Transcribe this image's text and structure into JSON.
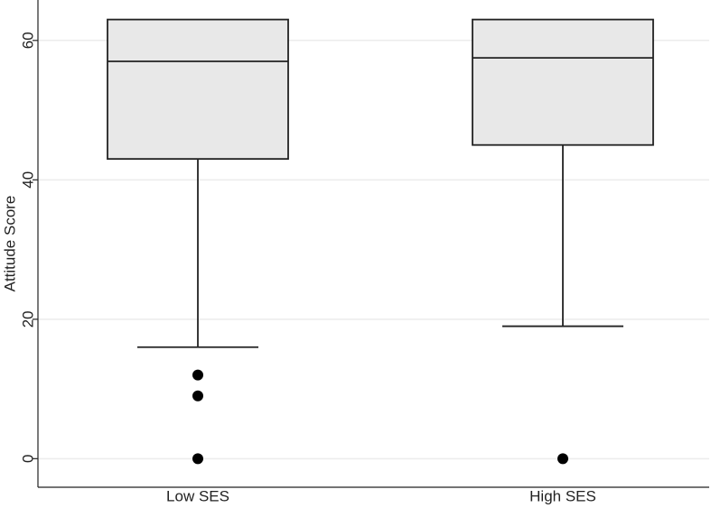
{
  "chart_data": {
    "type": "box",
    "ylabel": "Attitude Score",
    "categories": [
      "Low SES",
      "High SES"
    ],
    "q1": [
      43,
      45
    ],
    "median": [
      57,
      57.5
    ],
    "q3": [
      63,
      63
    ],
    "whislo": [
      16,
      19
    ],
    "whishi": [
      63,
      63
    ],
    "fliers": [
      [
        12,
        9,
        0
      ],
      [
        0
      ]
    ],
    "color": "#e8e8e8",
    "ylim": [
      -4.1,
      65.8
    ],
    "yticks": [
      0,
      20,
      40,
      60
    ],
    "grid": true
  }
}
